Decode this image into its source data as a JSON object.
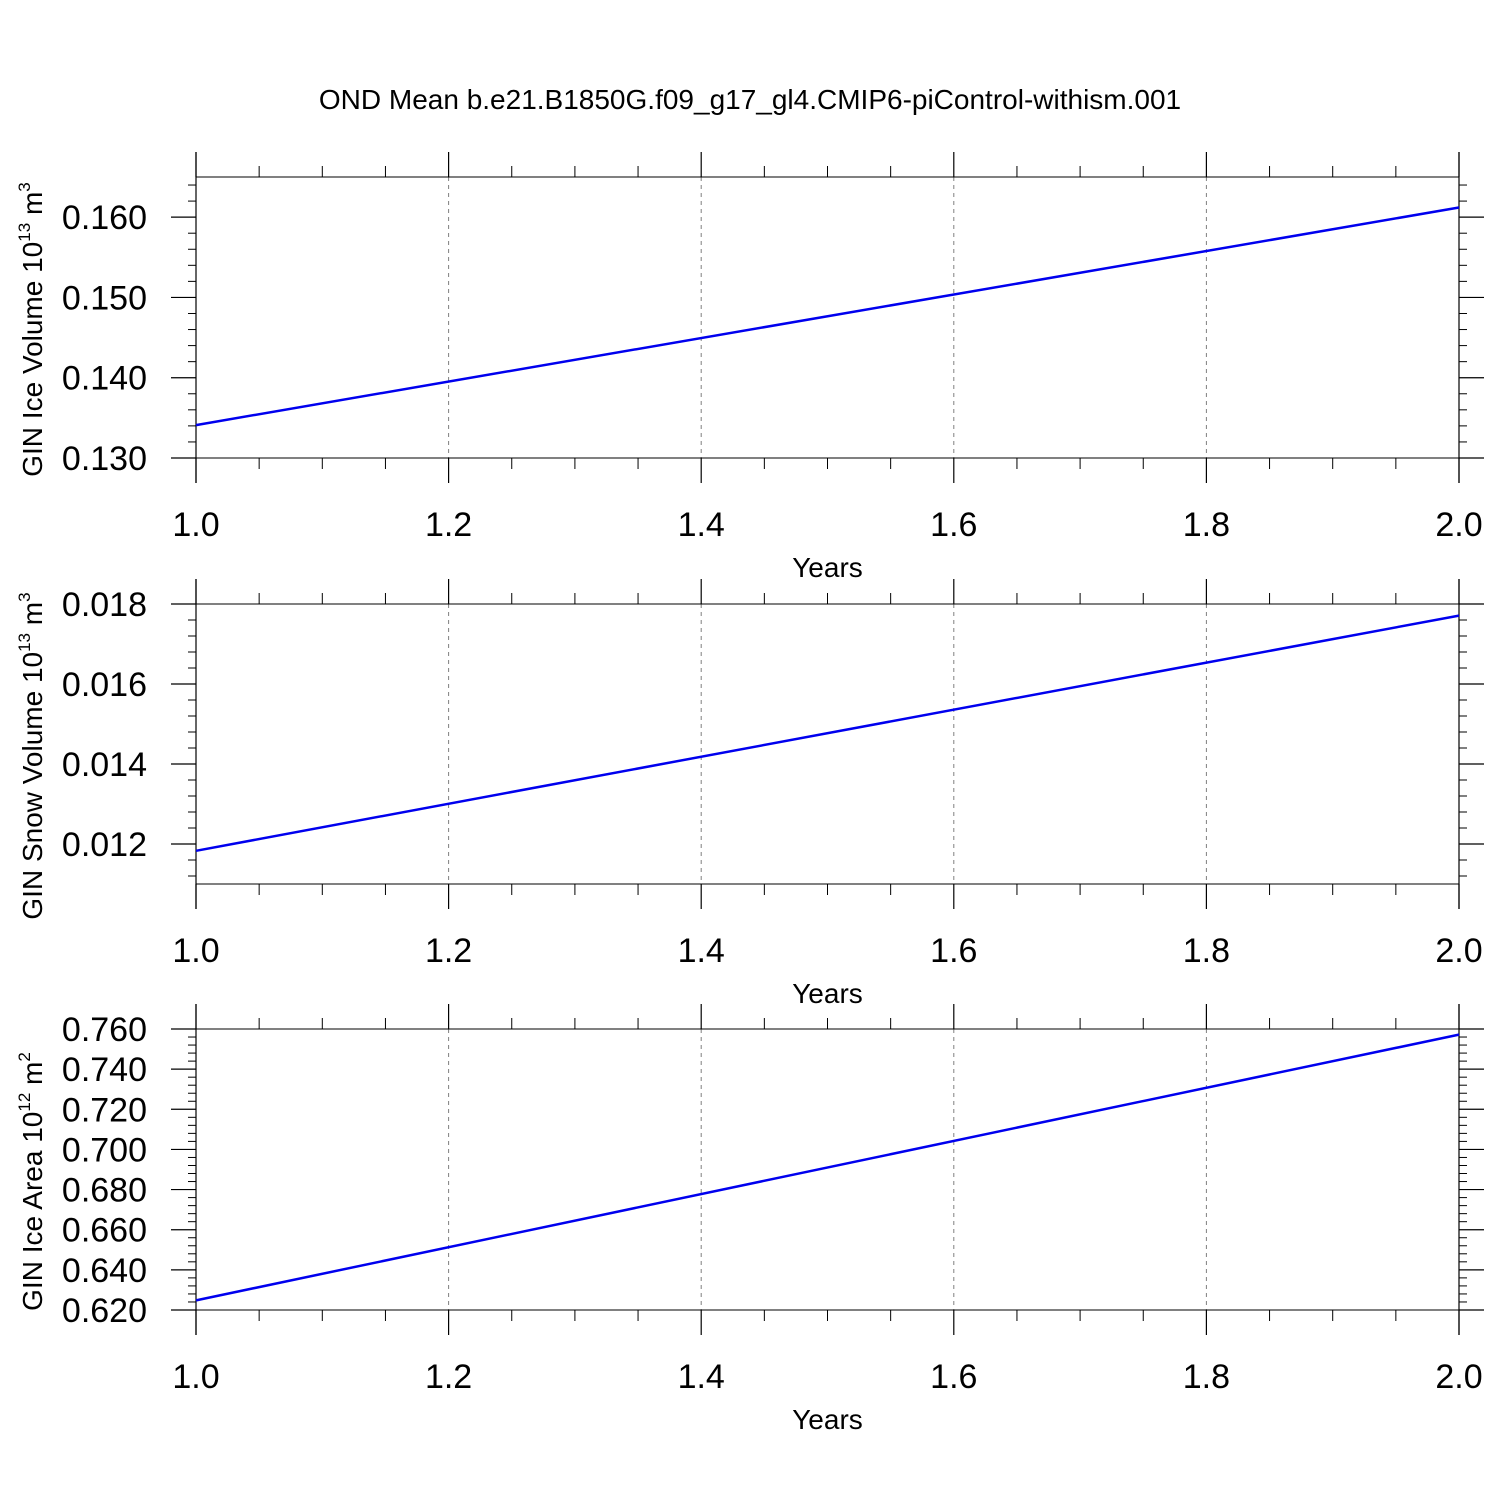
{
  "figure": {
    "title": "OND Mean b.e21.B1850G.f09_g17_gl4.CMIP6-piControl-withism.001",
    "line_color": "#0000ee",
    "grid_color": "#808080",
    "axis_color": "#000000",
    "grid": "dashed vertical at major x ticks"
  },
  "chart_data": [
    {
      "type": "line",
      "title": "",
      "xlabel": "Years",
      "ylabel_main": "GIN Ice Volume 10",
      "ylabel_exp": "13",
      "ylabel_unit": " m",
      "ylabel_unit_exp": "3",
      "xlim": [
        1.0,
        2.0
      ],
      "ylim": [
        0.13,
        0.165
      ],
      "x_ticks": [
        1.0,
        1.2,
        1.4,
        1.6,
        1.8,
        2.0
      ],
      "x_tick_labels": [
        "1.0",
        "1.2",
        "1.4",
        "1.6",
        "1.8",
        "2.0"
      ],
      "x_minor_step": 0.05,
      "y_ticks": [
        0.13,
        0.14,
        0.15,
        0.16
      ],
      "y_tick_labels": [
        "0.130",
        "0.140",
        "0.150",
        "0.160"
      ],
      "y_minor_step": 0.002,
      "series": [
        {
          "x": [
            1.0,
            2.0
          ],
          "y": [
            0.1341,
            0.1612
          ]
        }
      ]
    },
    {
      "type": "line",
      "title": "",
      "xlabel": "Years",
      "ylabel_main": "GIN Snow Volume 10",
      "ylabel_exp": "13",
      "ylabel_unit": " m",
      "ylabel_unit_exp": "3",
      "xlim": [
        1.0,
        2.0
      ],
      "ylim": [
        0.011,
        0.018
      ],
      "x_ticks": [
        1.0,
        1.2,
        1.4,
        1.6,
        1.8,
        2.0
      ],
      "x_tick_labels": [
        "1.0",
        "1.2",
        "1.4",
        "1.6",
        "1.8",
        "2.0"
      ],
      "x_minor_step": 0.05,
      "y_ticks": [
        0.012,
        0.014,
        0.016,
        0.018
      ],
      "y_tick_labels": [
        "0.012",
        "0.014",
        "0.016",
        "0.018"
      ],
      "y_minor_step": 0.0004,
      "series": [
        {
          "x": [
            1.0,
            2.0
          ],
          "y": [
            0.01183,
            0.01771
          ]
        }
      ]
    },
    {
      "type": "line",
      "title": "",
      "xlabel": "Years",
      "ylabel_main": "GIN Ice Area 10",
      "ylabel_exp": "12",
      "ylabel_unit": " m",
      "ylabel_unit_exp": "2",
      "xlim": [
        1.0,
        2.0
      ],
      "ylim": [
        0.62,
        0.76
      ],
      "x_ticks": [
        1.0,
        1.2,
        1.4,
        1.6,
        1.8,
        2.0
      ],
      "x_tick_labels": [
        "1.0",
        "1.2",
        "1.4",
        "1.6",
        "1.8",
        "2.0"
      ],
      "x_minor_step": 0.05,
      "y_ticks": [
        0.62,
        0.64,
        0.66,
        0.68,
        0.7,
        0.72,
        0.74,
        0.76
      ],
      "y_tick_labels": [
        "0.620",
        "0.640",
        "0.660",
        "0.680",
        "0.700",
        "0.720",
        "0.740",
        "0.760"
      ],
      "y_minor_step": 0.004,
      "series": [
        {
          "x": [
            1.0,
            2.0
          ],
          "y": [
            0.6248,
            0.7572
          ]
        }
      ]
    }
  ]
}
